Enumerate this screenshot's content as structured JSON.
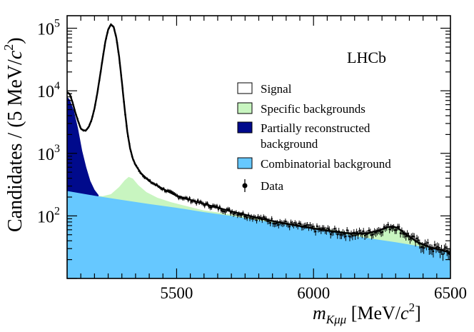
{
  "chart_data": {
    "type": "area",
    "experiment_label": "LHCb",
    "xlabel": {
      "main": "m",
      "sub": "Kμμ",
      "unit_open": " [MeV/",
      "unit_c": "c",
      "unit_sup": "2",
      "unit_close": "]"
    },
    "ylabel": {
      "main": "Candidates / (5 MeV/",
      "c": "c",
      "sup": "2",
      "close": ")"
    },
    "xlim": [
      5100,
      6500
    ],
    "ylim_log10": [
      1.0,
      5.2
    ],
    "yscale": "log",
    "x_ticks": [
      5500,
      6000,
      6500
    ],
    "y_ticks": [
      {
        "base": "10",
        "exp": "2",
        "log": 2
      },
      {
        "base": "10",
        "exp": "3",
        "log": 3
      },
      {
        "base": "10",
        "exp": "4",
        "log": 4
      },
      {
        "base": "10",
        "exp": "5",
        "log": 5
      }
    ],
    "legend": [
      {
        "label": "Signal",
        "color": "#ffffff",
        "kind": "box"
      },
      {
        "label": "Specific backgrounds",
        "color": "#c8f5c0",
        "kind": "box"
      },
      {
        "label": "Partially reconstructed",
        "label2": "background",
        "color": "#000a8c",
        "kind": "box"
      },
      {
        "label": "Combinatorial background",
        "color": "#66c8ff",
        "kind": "box"
      },
      {
        "label": "Data",
        "color": "#000000",
        "kind": "marker"
      }
    ],
    "series": [
      {
        "name": "Combinatorial background",
        "color": "#66c8ff",
        "x": [
          5100,
          5200,
          5300,
          5400,
          5500,
          5600,
          5700,
          5800,
          5900,
          6000,
          6100,
          6200,
          6300,
          6400,
          6500
        ],
        "values": [
          250,
          210,
          180,
          155,
          135,
          115,
          100,
          85,
          72,
          62,
          52,
          44,
          38,
          32,
          27
        ]
      },
      {
        "name": "Specific backgrounds",
        "color": "#c8f5c0",
        "x": [
          5100,
          5200,
          5230,
          5260,
          5290,
          5310,
          5325,
          5340,
          5360,
          5390,
          5430,
          5480,
          5600,
          5800,
          6000,
          6150,
          6220,
          6260,
          6290,
          6320,
          6360,
          6420,
          6500
        ],
        "values": [
          250,
          210,
          207,
          222,
          290,
          370,
          420,
          395,
          310,
          240,
          195,
          165,
          122,
          92,
          66,
          53,
          54,
          62,
          66,
          58,
          44,
          33,
          27
        ]
      },
      {
        "name": "Partially reconstructed background",
        "color": "#000a8c",
        "x": [
          5100,
          5110,
          5125,
          5140,
          5155,
          5170,
          5185,
          5200,
          5215
        ],
        "values": [
          8000,
          7200,
          4800,
          2500,
          1100,
          600,
          360,
          262,
          215
        ]
      },
      {
        "name": "Total fit",
        "color": "#000000",
        "x": [
          5100,
          5110,
          5120,
          5130,
          5140,
          5150,
          5160,
          5170,
          5180,
          5190,
          5200,
          5210,
          5220,
          5230,
          5240,
          5250,
          5260,
          5270,
          5280,
          5290,
          5300,
          5310,
          5320,
          5330,
          5340,
          5350,
          5370,
          5400,
          5450,
          5500,
          5600,
          5700,
          5800,
          5900,
          6000,
          6100,
          6150,
          6200,
          6240,
          6270,
          6290,
          6310,
          6340,
          6380,
          6420,
          6500
        ],
        "values": [
          9500,
          8800,
          6500,
          4500,
          3300,
          2500,
          2300,
          2350,
          2700,
          3500,
          5200,
          9000,
          17000,
          33000,
          62000,
          95000,
          115000,
          105000,
          70000,
          35000,
          14000,
          5200,
          2200,
          1200,
          820,
          650,
          480,
          360,
          270,
          210,
          155,
          118,
          92,
          75,
          63,
          54,
          52,
          53,
          59,
          66,
          68,
          63,
          50,
          38,
          32,
          26
        ]
      }
    ]
  }
}
